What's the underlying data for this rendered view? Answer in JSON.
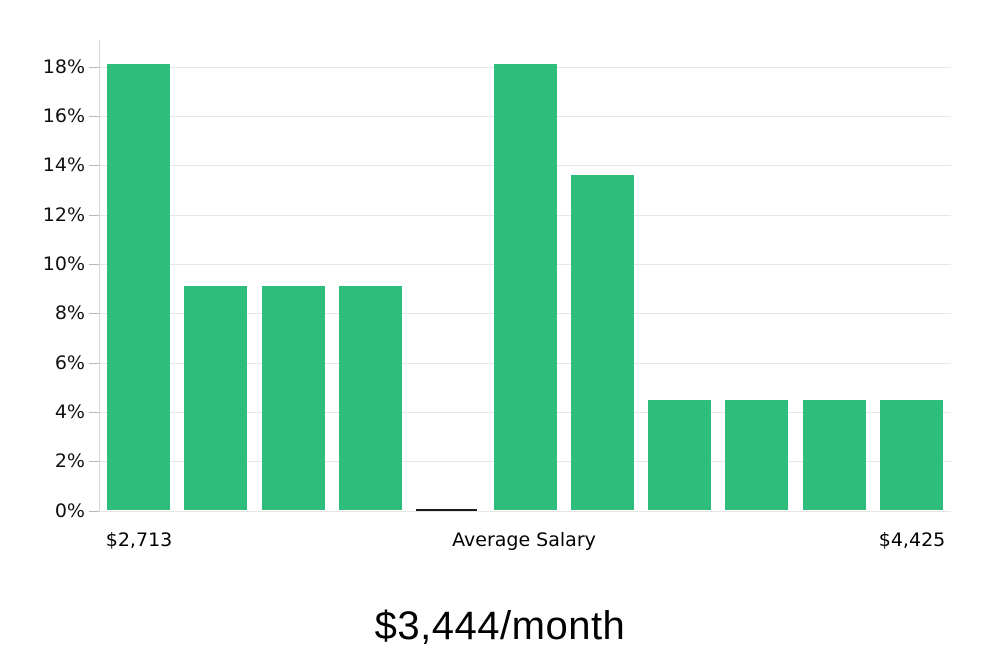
{
  "chart_data": {
    "type": "bar",
    "title": "$3,444/month",
    "values": [
      18.1,
      9.1,
      9.1,
      9.1,
      0.05,
      18.1,
      13.6,
      4.5,
      4.5,
      4.5,
      4.5
    ],
    "highlight_index": 4,
    "y_tick_labels": [
      "0%",
      "2%",
      "4%",
      "6%",
      "8%",
      "10%",
      "12%",
      "14%",
      "16%",
      "18%"
    ],
    "x_labels": {
      "min": "$2,713",
      "center": "Average Salary",
      "max": "$4,425"
    },
    "ylim": [
      0,
      19
    ],
    "grid": true,
    "legend": "none",
    "colors": {
      "bar": "#2ebd7a",
      "highlight": "#1c1c1c",
      "gridline": "#e6e6e6",
      "axis": "#d4d4d4",
      "tick": "#b8b8b8",
      "text": "#101010"
    }
  },
  "caption": {
    "text": "$3,444/month"
  }
}
